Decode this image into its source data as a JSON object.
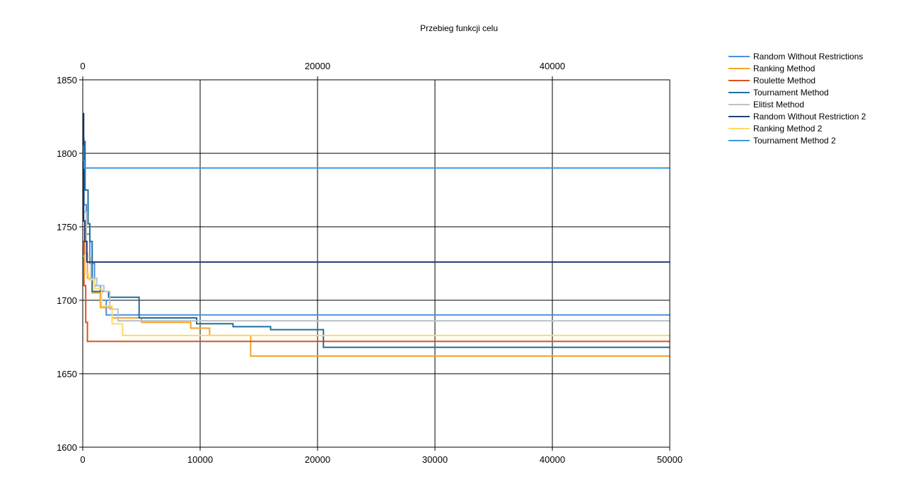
{
  "chart_data": {
    "type": "line",
    "title": "Przebieg funkcji celu",
    "xlabel": "",
    "ylabel": "",
    "xlim": [
      0,
      50000
    ],
    "ylim": [
      1600,
      1850
    ],
    "x_ticks_bottom": [
      "0",
      "10000",
      "20000",
      "30000",
      "40000",
      "50000"
    ],
    "x_ticks_top": [
      "0",
      "20000",
      "40000"
    ],
    "y_ticks": [
      "1600",
      "1650",
      "1700",
      "1750",
      "1800",
      "1850"
    ],
    "grid": true,
    "legend_position": "right",
    "series": [
      {
        "name": "Random Without Restrictions",
        "color": "#4a90e2",
        "step": true,
        "x": [
          0,
          100,
          300,
          600,
          1000,
          1500,
          2000,
          50000
        ],
        "y": [
          1810,
          1765,
          1745,
          1725,
          1710,
          1700,
          1690,
          1690
        ]
      },
      {
        "name": "Ranking Method",
        "color": "#f5a623",
        "step": true,
        "x": [
          0,
          150,
          400,
          800,
          1500,
          2500,
          5000,
          9200,
          10800,
          14300,
          50000
        ],
        "y": [
          1748,
          1732,
          1715,
          1705,
          1695,
          1688,
          1685,
          1681,
          1676,
          1662,
          1662
        ]
      },
      {
        "name": "Roulette Method",
        "color": "#e0501d",
        "step": true,
        "x": [
          0,
          100,
          250,
          400,
          50000
        ],
        "y": [
          1740,
          1710,
          1685,
          1672,
          1672
        ]
      },
      {
        "name": "Tournament Method",
        "color": "#1f6f99",
        "step": true,
        "x": [
          0,
          200,
          450,
          600,
          800,
          1400,
          2200,
          4800,
          9700,
          12800,
          16000,
          20500,
          50000
        ],
        "y": [
          1808,
          1775,
          1752,
          1740,
          1706,
          1706,
          1702,
          1688,
          1684,
          1682,
          1680,
          1668,
          1668
        ]
      },
      {
        "name": "Elitist Method",
        "color": "#c0c0c8",
        "step": true,
        "x": [
          0,
          300,
          700,
          1200,
          1800,
          2300,
          3000,
          50000
        ],
        "y": [
          1760,
          1730,
          1715,
          1710,
          1706,
          1694,
          1686,
          1686
        ]
      },
      {
        "name": "Random Without Restriction 2",
        "color": "#1f3f7a",
        "step": true,
        "x": [
          0,
          80,
          180,
          350,
          50000
        ],
        "y": [
          1827,
          1754,
          1740,
          1726,
          1726
        ]
      },
      {
        "name": "Ranking Method 2",
        "color": "#ffd966",
        "step": true,
        "x": [
          0,
          200,
          500,
          1000,
          1600,
          2500,
          3400,
          50000
        ],
        "y": [
          1730,
          1718,
          1714,
          1708,
          1696,
          1684,
          1676,
          1676
        ]
      },
      {
        "name": "Tournament Method 2",
        "color": "#3a9ad9",
        "step": true,
        "x": [
          0,
          50,
          120,
          50000
        ],
        "y": [
          1805,
          1795,
          1790,
          1790
        ]
      }
    ]
  }
}
